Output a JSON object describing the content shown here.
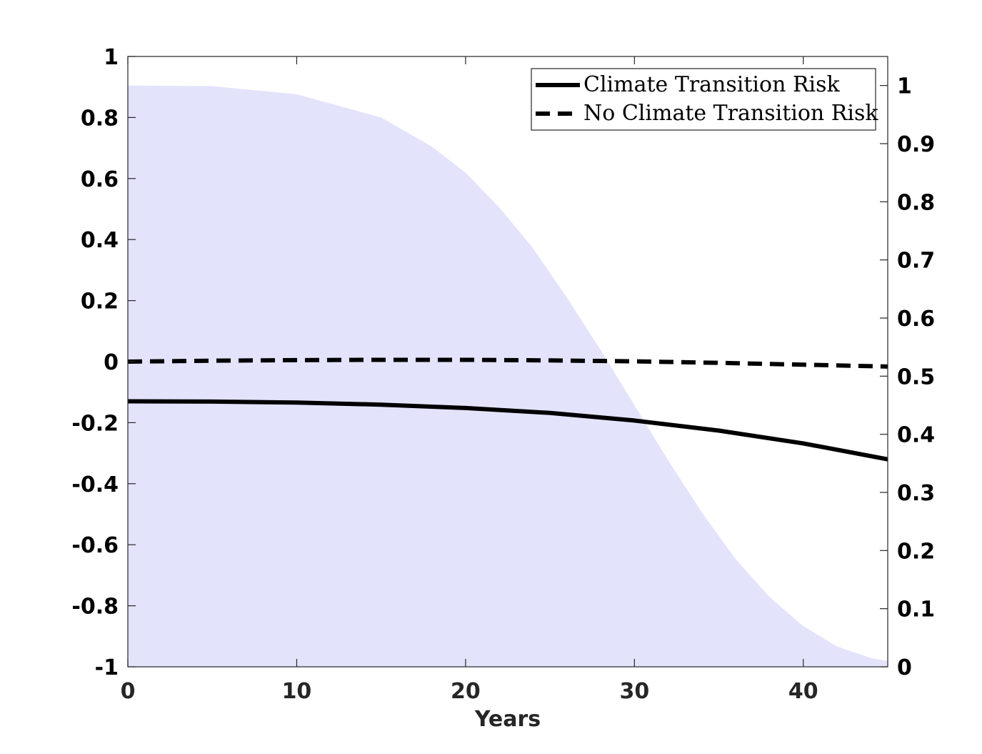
{
  "chart_data": {
    "type": "line",
    "title": "",
    "xlabel": "Years",
    "ylabel_left": "",
    "ylabel_right": "",
    "xlim": [
      0,
      45
    ],
    "ylim_left": [
      -1,
      1
    ],
    "ylim_right": [
      0,
      1.05
    ],
    "x_ticks": [
      0,
      10,
      20,
      30,
      40
    ],
    "y_left_ticks": [
      -1,
      -0.8,
      -0.6,
      -0.4,
      -0.2,
      0,
      0.2,
      0.4,
      0.6,
      0.8,
      1
    ],
    "y_right_ticks": [
      0,
      0.1,
      0.2,
      0.3,
      0.4,
      0.5,
      0.6,
      0.7,
      0.8,
      0.9,
      1
    ],
    "x_tick_labels": [
      "0",
      "10",
      "20",
      "30",
      "40"
    ],
    "y_left_tick_labels": [
      "-1",
      "-0.8",
      "-0.6",
      "-0.4",
      "-0.2",
      "0",
      "0.2",
      "0.4",
      "0.6",
      "0.8",
      "1"
    ],
    "y_right_tick_labels": [
      "0",
      "0.1",
      "0.2",
      "0.3",
      "0.4",
      "0.5",
      "0.6",
      "0.7",
      "0.8",
      "0.9",
      "1"
    ],
    "grid": false,
    "legend_position": "top-right",
    "series": [
      {
        "name": "Climate Transition Risk",
        "axis": "left",
        "style": "solid",
        "color": "#000000",
        "x": [
          0,
          5,
          10,
          15,
          20,
          25,
          30,
          35,
          40,
          45
        ],
        "y": [
          -0.13,
          -0.131,
          -0.134,
          -0.141,
          -0.152,
          -0.168,
          -0.193,
          -0.226,
          -0.268,
          -0.32
        ]
      },
      {
        "name": "No Climate Transition Risk",
        "axis": "left",
        "style": "dashed",
        "color": "#000000",
        "x": [
          0,
          5,
          10,
          15,
          20,
          25,
          30,
          35,
          40,
          45
        ],
        "y": [
          0.0,
          0.003,
          0.005,
          0.006,
          0.006,
          0.004,
          0.001,
          -0.004,
          -0.01,
          -0.016
        ]
      },
      {
        "axis": "right",
        "style": "area",
        "color": "#e3e3fc",
        "x": [
          0,
          5,
          10,
          15,
          18,
          20,
          22,
          24,
          26,
          28,
          30,
          32,
          34,
          36,
          38,
          40,
          42,
          44,
          45
        ],
        "y": [
          1.0,
          0.999,
          0.985,
          0.945,
          0.895,
          0.85,
          0.79,
          0.72,
          0.635,
          0.545,
          0.45,
          0.355,
          0.265,
          0.185,
          0.12,
          0.07,
          0.035,
          0.015,
          0.01
        ]
      }
    ]
  }
}
